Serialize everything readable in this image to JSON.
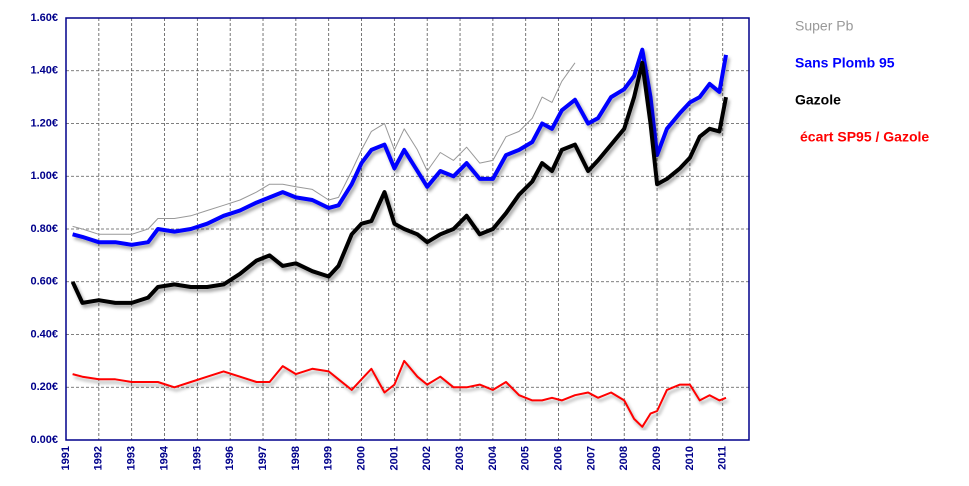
{
  "chart_data": {
    "type": "line",
    "x": [
      1991.2,
      1991.5,
      1992,
      1992.5,
      1993,
      1993.5,
      1993.8,
      1994.3,
      1994.8,
      1995.3,
      1995.8,
      1996.3,
      1996.8,
      1997.2,
      1997.6,
      1998,
      1998.5,
      1999,
      1999.3,
      1999.7,
      2000,
      2000.3,
      2000.7,
      2001,
      2001.3,
      2001.7,
      2002,
      2002.4,
      2002.8,
      2003.2,
      2003.6,
      2004,
      2004.4,
      2004.8,
      2005.2,
      2005.5,
      2005.8,
      2006.1,
      2006.5,
      2006.9,
      2007.2,
      2007.6,
      2008,
      2008.3,
      2008.55,
      2008.8,
      2009,
      2009.3,
      2009.7,
      2010,
      2010.3,
      2010.6,
      2010.9,
      2011.1
    ],
    "series": [
      {
        "name": "Super Pb",
        "color": "#999999",
        "values": [
          0.81,
          0.8,
          0.78,
          0.78,
          0.78,
          0.8,
          0.84,
          0.84,
          0.85,
          0.87,
          0.89,
          0.91,
          0.94,
          0.97,
          0.97,
          0.96,
          0.95,
          0.91,
          0.92,
          1.02,
          1.1,
          1.17,
          1.2,
          1.1,
          1.18,
          1.1,
          1.02,
          1.09,
          1.06,
          1.11,
          1.05,
          1.06,
          1.15,
          1.17,
          1.22,
          1.3,
          1.28,
          1.36,
          1.43,
          null,
          null,
          null,
          null,
          null,
          null,
          null,
          null,
          null,
          null,
          null,
          null,
          null,
          null,
          null
        ]
      },
      {
        "name": "Sans Plomb 95",
        "color": "#0000ff",
        "values": [
          0.78,
          0.77,
          0.75,
          0.75,
          0.74,
          0.75,
          0.8,
          0.79,
          0.8,
          0.82,
          0.85,
          0.87,
          0.9,
          0.92,
          0.94,
          0.92,
          0.91,
          0.88,
          0.89,
          0.97,
          1.05,
          1.1,
          1.12,
          1.03,
          1.1,
          1.02,
          0.96,
          1.02,
          1.0,
          1.05,
          0.99,
          0.99,
          1.08,
          1.1,
          1.13,
          1.2,
          1.18,
          1.25,
          1.29,
          1.2,
          1.22,
          1.3,
          1.33,
          1.38,
          1.48,
          1.3,
          1.08,
          1.18,
          1.24,
          1.28,
          1.3,
          1.35,
          1.32,
          1.46
        ]
      },
      {
        "name": "Gazole",
        "color": "#000000",
        "values": [
          0.6,
          0.52,
          0.53,
          0.52,
          0.52,
          0.54,
          0.58,
          0.59,
          0.58,
          0.58,
          0.59,
          0.63,
          0.68,
          0.7,
          0.66,
          0.67,
          0.64,
          0.62,
          0.66,
          0.78,
          0.82,
          0.83,
          0.94,
          0.82,
          0.8,
          0.78,
          0.75,
          0.78,
          0.8,
          0.85,
          0.78,
          0.8,
          0.86,
          0.93,
          0.98,
          1.05,
          1.02,
          1.1,
          1.12,
          1.02,
          1.06,
          1.12,
          1.18,
          1.3,
          1.43,
          1.2,
          0.97,
          0.99,
          1.03,
          1.07,
          1.15,
          1.18,
          1.17,
          1.3
        ]
      },
      {
        "name": "écart SP95 / Gazole",
        "color": "#ff0000",
        "values": [
          0.25,
          0.24,
          0.23,
          0.23,
          0.22,
          0.22,
          0.22,
          0.2,
          0.22,
          0.24,
          0.26,
          0.24,
          0.22,
          0.22,
          0.28,
          0.25,
          0.27,
          0.26,
          0.23,
          0.19,
          0.23,
          0.27,
          0.18,
          0.21,
          0.3,
          0.24,
          0.21,
          0.24,
          0.2,
          0.2,
          0.21,
          0.19,
          0.22,
          0.17,
          0.15,
          0.15,
          0.16,
          0.15,
          0.17,
          0.18,
          0.16,
          0.18,
          0.15,
          0.08,
          0.05,
          0.1,
          0.11,
          0.19,
          0.21,
          0.21,
          0.15,
          0.17,
          0.15,
          0.16
        ]
      }
    ],
    "xlim": [
      1991,
      2011.8
    ],
    "xticks": [
      1991,
      1992,
      1993,
      1994,
      1995,
      1996,
      1997,
      1998,
      1999,
      2000,
      2001,
      2002,
      2003,
      2004,
      2005,
      2006,
      2007,
      2008,
      2009,
      2010,
      2011
    ],
    "ylim": [
      0,
      1.6
    ],
    "yticks": [
      {
        "value": 0,
        "label": "0.00€"
      },
      {
        "value": 0.2,
        "label": "0.20€"
      },
      {
        "value": 0.4,
        "label": "0.40€"
      },
      {
        "value": 0.6,
        "label": "0.60€"
      },
      {
        "value": 0.8,
        "label": "0.80€"
      },
      {
        "value": 1.0,
        "label": "1.00€"
      },
      {
        "value": 1.2,
        "label": "1.20€"
      },
      {
        "value": 1.4,
        "label": "1.40€"
      },
      {
        "value": 1.6,
        "label": "1.60€"
      }
    ],
    "grid": true,
    "legend": "right"
  }
}
